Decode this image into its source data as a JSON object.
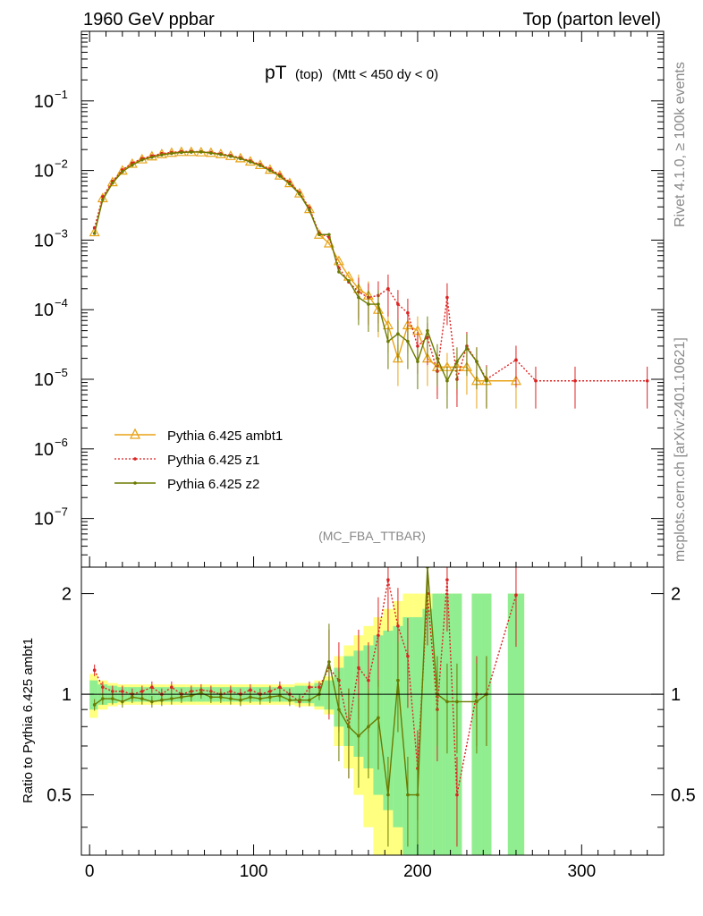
{
  "header": {
    "left": "1960 GeV ppbar",
    "right": "Top (parton level)"
  },
  "side_labels": {
    "rivet": "Rivet 4.1.0, ≥ 100k events",
    "mcplots": "mcplots.cern.ch [arXiv:2401.10621]"
  },
  "analysis_tag": "(MC_FBA_TTBAR)",
  "colors": {
    "ambt1": "#e8a317",
    "z1": "#dd2222",
    "z2": "#6b7a00",
    "band_green": "#90ee90",
    "band_yellow": "#ffff80"
  },
  "chart_data": [
    {
      "type": "line",
      "title_main": "pT",
      "title_sub": "(top)",
      "title_cut": "(Mtt < 450 dy < 0)",
      "xlim": [
        -5,
        350
      ],
      "ylim": [
        2e-08,
        1
      ],
      "yscale": "log",
      "ytick_labels": [
        "10^-7",
        "10^-6",
        "10^-5",
        "10^-4",
        "10^-3",
        "10^-2",
        "10^-1"
      ],
      "ytick_values": [
        1e-07,
        1e-06,
        1e-05,
        0.0001,
        0.001,
        0.01,
        0.1
      ],
      "legend_position": "bottom-left",
      "series": [
        {
          "name": "Pythia 6.425 ambt1",
          "color": "#e8a317",
          "marker": "triangle",
          "x": [
            3,
            8,
            14,
            20,
            26,
            32,
            38,
            44,
            50,
            56,
            62,
            68,
            74,
            80,
            86,
            92,
            98,
            104,
            110,
            116,
            122,
            128,
            134,
            140,
            146,
            152,
            158,
            164,
            170,
            176,
            182,
            188,
            194,
            200,
            206,
            212,
            218,
            224,
            230,
            236,
            242,
            260
          ],
          "y": [
            0.0013,
            0.004,
            0.0068,
            0.01,
            0.0125,
            0.0145,
            0.016,
            0.0172,
            0.018,
            0.0185,
            0.0185,
            0.0183,
            0.018,
            0.0172,
            0.0162,
            0.015,
            0.0135,
            0.012,
            0.0103,
            0.0085,
            0.0066,
            0.0047,
            0.0028,
            0.0012,
            0.0009,
            0.0005,
            0.0003,
            0.0002,
            0.00016,
            0.0001,
            6e-05,
            2e-05,
            6e-05,
            5e-05,
            2e-05,
            1.5e-05,
            1.5e-05,
            1.5e-05,
            1.5e-05,
            9.5e-06,
            9.5e-06,
            9.5e-06
          ]
        },
        {
          "name": "Pythia 6.425 z1",
          "color": "#dd2222",
          "marker": "dot",
          "x": [
            3,
            8,
            14,
            20,
            26,
            32,
            38,
            44,
            50,
            56,
            62,
            68,
            74,
            80,
            86,
            92,
            98,
            104,
            110,
            116,
            122,
            128,
            134,
            140,
            146,
            152,
            158,
            164,
            170,
            176,
            182,
            188,
            194,
            200,
            206,
            212,
            218,
            224,
            230,
            236,
            242,
            260,
            272,
            296,
            340
          ],
          "y": [
            0.0015,
            0.0042,
            0.007,
            0.0102,
            0.0128,
            0.0148,
            0.0162,
            0.0175,
            0.0182,
            0.0187,
            0.0188,
            0.0186,
            0.0182,
            0.0174,
            0.0164,
            0.0152,
            0.0137,
            0.0122,
            0.0105,
            0.0087,
            0.0068,
            0.0048,
            0.0029,
            0.00125,
            0.0011,
            0.0004,
            0.00025,
            0.00018,
            0.00015,
            0.00016,
            0.0002,
            0.00012,
            9e-05,
            3e-05,
            4e-05,
            1.3e-05,
            0.00015,
            1e-05,
            3e-05,
            1.8e-05,
            1e-05,
            1.9e-05,
            9.5e-06,
            9.5e-06,
            9.5e-06
          ]
        },
        {
          "name": "Pythia 6.425 z2",
          "color": "#6b7a00",
          "marker": "dot",
          "x": [
            3,
            8,
            14,
            20,
            26,
            32,
            38,
            44,
            50,
            56,
            62,
            68,
            74,
            80,
            86,
            92,
            98,
            104,
            110,
            116,
            122,
            128,
            134,
            140,
            146,
            152,
            158,
            164,
            170,
            176,
            182,
            188,
            194,
            200,
            206,
            212,
            218,
            224,
            230,
            236,
            242
          ],
          "y": [
            0.00125,
            0.0038,
            0.0066,
            0.0096,
            0.012,
            0.0142,
            0.0155,
            0.0168,
            0.0176,
            0.0182,
            0.0184,
            0.0185,
            0.0178,
            0.017,
            0.016,
            0.0148,
            0.0133,
            0.0118,
            0.01,
            0.0083,
            0.0064,
            0.0046,
            0.0027,
            0.0012,
            0.0012,
            0.00035,
            0.00026,
            0.00015,
            0.00012,
            0.00012,
            3.5e-05,
            4.5e-05,
            3.5e-05,
            1.8e-05,
            5e-05,
            2e-05,
            9.5e-06,
            1.8e-05,
            2.8e-05,
            1.8e-05,
            9.5e-06
          ]
        }
      ]
    },
    {
      "type": "line",
      "ylabel": "Ratio to Pythia 6.425 ambt1",
      "xlim": [
        -5,
        350
      ],
      "ylim": [
        0.33,
        2.4
      ],
      "yscale": "log",
      "ytick_labels": [
        "0.5",
        "1",
        "2"
      ],
      "ytick_values": [
        0.5,
        1,
        2
      ],
      "xtick_labels": [
        "0",
        "100",
        "200",
        "300"
      ],
      "xtick_values": [
        0,
        100,
        200,
        300
      ],
      "reference": 1,
      "band": {
        "x_edges": [
          0,
          5,
          11,
          17,
          23,
          29,
          35,
          41,
          47,
          53,
          59,
          65,
          71,
          77,
          83,
          89,
          95,
          101,
          107,
          113,
          119,
          125,
          131,
          137,
          143,
          149,
          155,
          161,
          167,
          173,
          179,
          185,
          191,
          197,
          203,
          209,
          215,
          221,
          227,
          233,
          239,
          245,
          255,
          265
        ],
        "green_half": [
          0.1,
          0.07,
          0.06,
          0.05,
          0.05,
          0.05,
          0.05,
          0.05,
          0.05,
          0.05,
          0.05,
          0.05,
          0.05,
          0.05,
          0.05,
          0.05,
          0.05,
          0.05,
          0.05,
          0.05,
          0.05,
          0.06,
          0.06,
          0.08,
          0.1,
          0.2,
          0.3,
          0.35,
          0.4,
          0.5,
          0.55,
          0.6,
          0.7,
          0.7,
          0.8,
          1.0,
          1.0,
          1.0,
          0,
          1.0,
          1.0,
          0,
          1.0
        ],
        "yellow_half": [
          0.15,
          0.1,
          0.08,
          0.07,
          0.07,
          0.07,
          0.07,
          0.07,
          0.07,
          0.07,
          0.07,
          0.07,
          0.07,
          0.07,
          0.07,
          0.07,
          0.07,
          0.07,
          0.07,
          0.07,
          0.07,
          0.08,
          0.08,
          0.1,
          0.13,
          0.3,
          0.4,
          0.5,
          0.6,
          0.7,
          0.8,
          0.9,
          1.0,
          1.0,
          1.0,
          1.0,
          1.0,
          1.0,
          0,
          1.0,
          1.0,
          0,
          1.0
        ]
      },
      "series": [
        {
          "name": "Pythia 6.425 z1",
          "color": "#dd2222",
          "x": [
            3,
            8,
            14,
            20,
            26,
            32,
            38,
            44,
            50,
            56,
            62,
            68,
            74,
            80,
            86,
            92,
            98,
            104,
            110,
            116,
            122,
            128,
            134,
            140,
            146,
            152,
            158,
            164,
            170,
            176,
            182,
            188,
            194,
            200,
            206,
            212,
            218,
            224,
            236,
            242,
            260
          ],
          "y": [
            1.18,
            1.05,
            1.02,
            1.02,
            1.0,
            1.02,
            1.05,
            1.0,
            1.05,
            1.0,
            1.02,
            1.03,
            1.02,
            1.0,
            1.02,
            1.0,
            1.03,
            1.0,
            1.02,
            1.05,
            1.0,
            0.95,
            1.05,
            1.05,
            1.2,
            1.1,
            0.8,
            1.2,
            1.1,
            1.5,
            2.2,
            1.6,
            1.3,
            0.6,
            2.0,
            0.9,
            2.2,
            0.5,
            1.0,
            1.0,
            1.98
          ]
        },
        {
          "name": "Pythia 6.425 z2",
          "color": "#6b7a00",
          "x": [
            3,
            8,
            14,
            20,
            26,
            32,
            38,
            44,
            50,
            56,
            62,
            68,
            74,
            80,
            86,
            92,
            98,
            104,
            110,
            116,
            122,
            128,
            134,
            140,
            146,
            152,
            158,
            164,
            170,
            176,
            182,
            188,
            194,
            200,
            206,
            212,
            218,
            224,
            236,
            242
          ],
          "y": [
            0.93,
            0.97,
            0.97,
            0.95,
            0.98,
            0.97,
            0.95,
            0.96,
            0.97,
            0.98,
            0.99,
            1.01,
            0.98,
            0.98,
            0.97,
            0.96,
            0.98,
            0.97,
            0.98,
            0.99,
            0.96,
            0.96,
            0.96,
            1.0,
            1.25,
            0.9,
            0.8,
            0.75,
            0.8,
            0.85,
            0.5,
            1.1,
            0.5,
            0.5,
            2.4,
            1.0,
            0.95,
            0.95,
            0.95,
            1.0
          ]
        }
      ]
    }
  ]
}
